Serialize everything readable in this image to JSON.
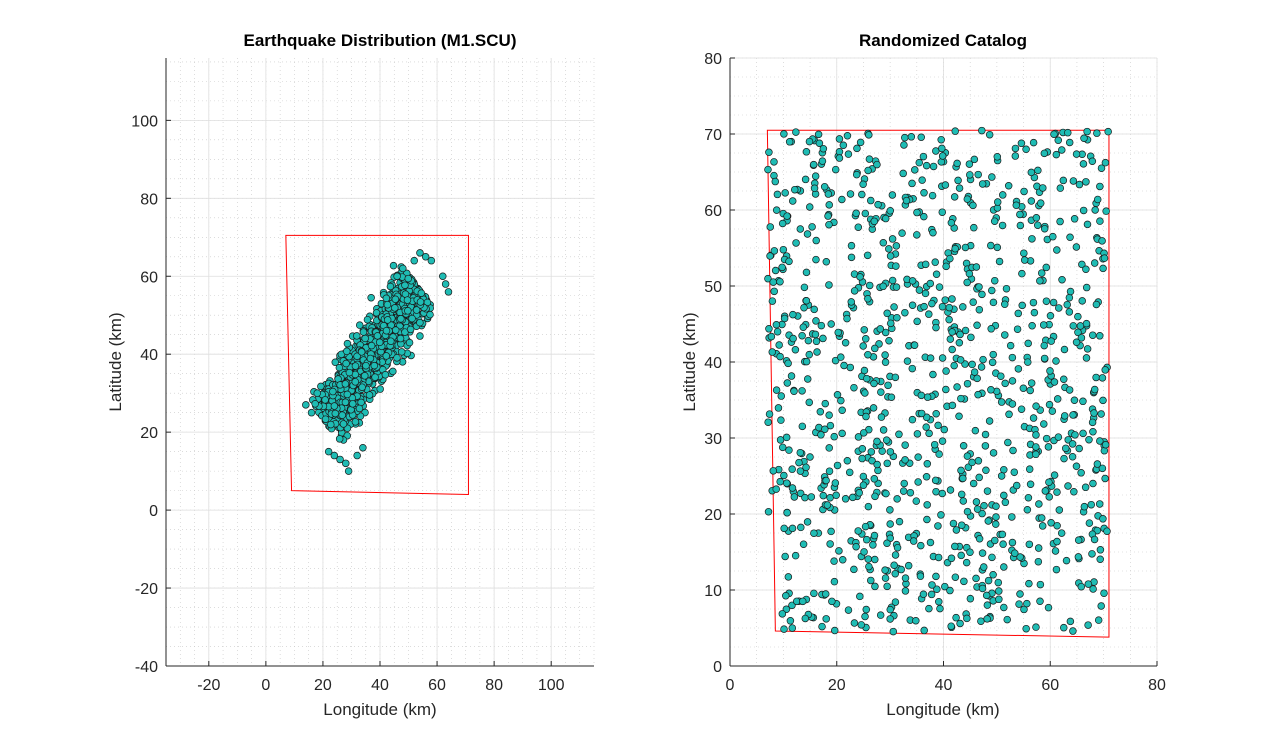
{
  "colors": {
    "marker_fill": "#1fbcb4",
    "marker_edge": "#1a1a1a",
    "boundary": "#ff0000",
    "grid": "#c7c7c7",
    "axis": "#262626"
  },
  "chart_data": [
    {
      "type": "scatter",
      "title": "Earthquake Distribution (M1.SCU)",
      "xlabel": "Longitude (km)",
      "ylabel": "Latitude (km)",
      "xlim": [
        -35,
        115
      ],
      "ylim": [
        -40,
        116
      ],
      "xticks": [
        -20,
        0,
        20,
        40,
        60,
        80,
        100
      ],
      "yticks": [
        -40,
        -20,
        0,
        20,
        40,
        60,
        80,
        100
      ],
      "grid": true,
      "minor_grid": true,
      "box": false,
      "boundary_polygon": [
        [
          7,
          70.5
        ],
        [
          71,
          70.5
        ],
        [
          71,
          4
        ],
        [
          9,
          5
        ]
      ],
      "scatter_distribution": {
        "description_free": true,
        "count": 1100,
        "band_start": [
          22,
          24
        ],
        "band_end": [
          52,
          56
        ],
        "band_halfwidth": 6.5,
        "outliers": [
          [
            14,
            27
          ],
          [
            16,
            25
          ],
          [
            18,
            30
          ],
          [
            22,
            15
          ],
          [
            24,
            14
          ],
          [
            26,
            13
          ],
          [
            28,
            12
          ],
          [
            29,
            10
          ],
          [
            32,
            14
          ],
          [
            34,
            16
          ],
          [
            56,
            65
          ],
          [
            58,
            64
          ],
          [
            63,
            58
          ],
          [
            64,
            56
          ],
          [
            62,
            60
          ],
          [
            54,
            66
          ],
          [
            52,
            64
          ],
          [
            48,
            62
          ],
          [
            46,
            60
          ]
        ]
      },
      "marker": "circle"
    },
    {
      "type": "scatter",
      "title": "Randomized Catalog",
      "xlabel": "Longitude (km)",
      "ylabel": "Latitude (km)",
      "xlim": [
        0,
        80
      ],
      "ylim": [
        0,
        80
      ],
      "xticks": [
        0,
        20,
        40,
        60,
        80
      ],
      "yticks": [
        0,
        10,
        20,
        30,
        40,
        50,
        60,
        70,
        80
      ],
      "grid": true,
      "minor_grid": true,
      "box": false,
      "boundary_polygon": [
        [
          7,
          70.5
        ],
        [
          71,
          70.5
        ],
        [
          71,
          3.8
        ],
        [
          8.5,
          4.6
        ]
      ],
      "scatter_distribution": {
        "count": 1100,
        "uniform_region": [
          [
            7,
            4.5
          ],
          [
            71,
            70.5
          ]
        ]
      },
      "marker": "circle"
    }
  ]
}
